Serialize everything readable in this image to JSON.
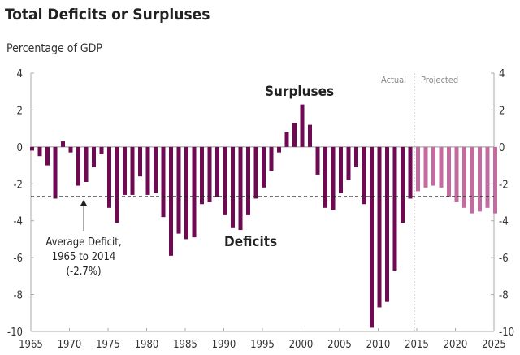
{
  "chart_data": {
    "type": "bar",
    "title": "Total Deficits or Surpluses",
    "ylabel": "Percentage of GDP",
    "xlabel": "",
    "ylim": [
      -10,
      4
    ],
    "xlim": [
      1965,
      2025
    ],
    "yticks": [
      "4",
      "2",
      "0",
      "-2",
      "-4",
      "-6",
      "-8",
      "-10"
    ],
    "xticks": [
      "1965",
      "1970",
      "1975",
      "1980",
      "1985",
      "1990",
      "1995",
      "2000",
      "2005",
      "2010",
      "2015",
      "2020",
      "2025"
    ],
    "grid": false,
    "colors": {
      "actual": "#6e0a52",
      "projected": "#c36a9f"
    },
    "series": [
      {
        "name": "Actual",
        "x": [
          1965,
          1966,
          1967,
          1968,
          1969,
          1970,
          1971,
          1972,
          1973,
          1974,
          1975,
          1976,
          1977,
          1978,
          1979,
          1980,
          1981,
          1982,
          1983,
          1984,
          1985,
          1986,
          1987,
          1988,
          1989,
          1990,
          1991,
          1992,
          1993,
          1994,
          1995,
          1996,
          1997,
          1998,
          1999,
          2000,
          2001,
          2002,
          2003,
          2004,
          2005,
          2006,
          2007,
          2008,
          2009,
          2010,
          2011,
          2012,
          2013,
          2014
        ],
        "values": [
          -0.2,
          -0.5,
          -1.0,
          -2.8,
          0.3,
          -0.3,
          -2.1,
          -1.9,
          -1.1,
          -0.4,
          -3.3,
          -4.1,
          -2.6,
          -2.6,
          -1.6,
          -2.6,
          -2.5,
          -3.8,
          -5.9,
          -4.7,
          -5.0,
          -4.9,
          -3.1,
          -3.0,
          -2.7,
          -3.7,
          -4.4,
          -4.5,
          -3.7,
          -2.8,
          -2.2,
          -1.3,
          -0.3,
          0.8,
          1.3,
          2.3,
          1.2,
          -1.5,
          -3.3,
          -3.4,
          -2.5,
          -1.8,
          -1.1,
          -3.1,
          -9.8,
          -8.7,
          -8.4,
          -6.7,
          -4.1,
          -2.8
        ]
      },
      {
        "name": "Projected",
        "x": [
          2015,
          2016,
          2017,
          2018,
          2019,
          2020,
          2021,
          2022,
          2023,
          2024,
          2025
        ],
        "values": [
          -2.4,
          -2.2,
          -2.1,
          -2.2,
          -2.7,
          -3.0,
          -3.3,
          -3.6,
          -3.5,
          -3.3,
          -3.6
        ]
      }
    ],
    "reference_line": {
      "value": -2.7,
      "label": [
        "Average Deficit,",
        "1965 to 2014",
        "(-2.7%)"
      ]
    },
    "annotations": {
      "surpluses": "Surpluses",
      "deficits": "Deficits",
      "actual": "Actual",
      "projected": "Projected"
    }
  }
}
